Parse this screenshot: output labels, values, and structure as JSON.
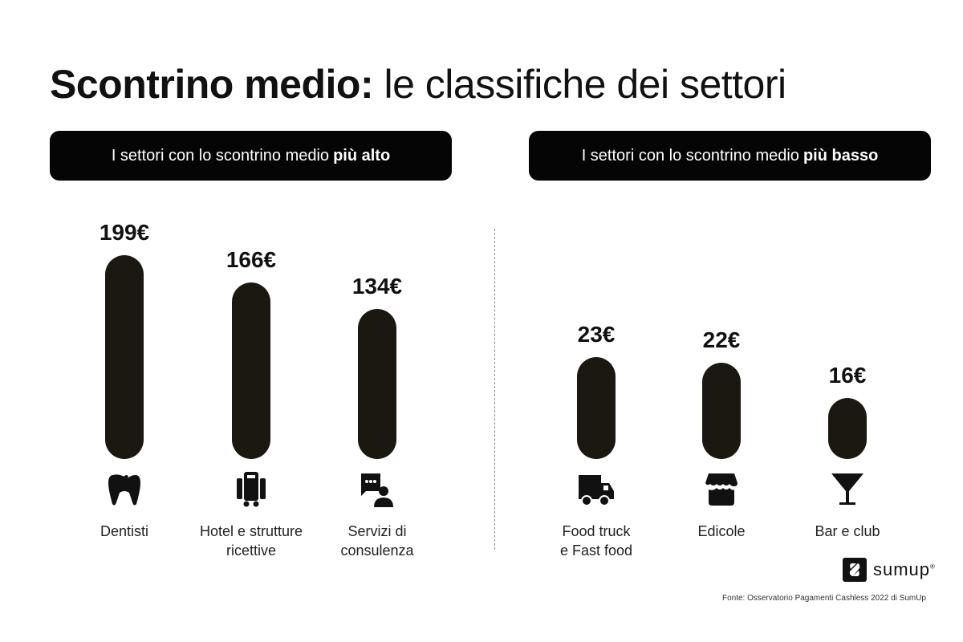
{
  "title": {
    "bold": "Scontrino medio:",
    "rest": " le classifiche dei settori"
  },
  "chart_data": [
    {
      "type": "bar",
      "header": {
        "text": "I settori con lo scontrino medio",
        "bold": "più alto"
      },
      "categories": [
        "Dentisti",
        "Hotel e strutture ricettive",
        "Servizi di consulenza"
      ],
      "values": [
        199,
        166,
        134
      ],
      "value_labels": [
        "199€",
        "166€",
        "134€"
      ],
      "unit": "€",
      "icons": [
        "tooth-icon",
        "luggage-icon",
        "consulting-chat-icon"
      ]
    },
    {
      "type": "bar",
      "header": {
        "text": "I settori con lo scontrino medio",
        "bold": "più basso"
      },
      "categories": [
        "Food truck e Fast food",
        "Edicole",
        "Bar e club"
      ],
      "label_lines": [
        [
          "Food truck",
          "e Fast food"
        ],
        [
          "Edicole"
        ],
        [
          "Bar e club"
        ]
      ],
      "values": [
        23,
        22,
        16
      ],
      "value_labels": [
        "23€",
        "22€",
        "16€"
      ],
      "unit": "€",
      "icons": [
        "truck-icon",
        "shop-icon",
        "cocktail-icon"
      ]
    }
  ],
  "left_label_lines": [
    [
      "Dentisti"
    ],
    [
      "Hotel e strutture",
      "ricettive"
    ],
    [
      "Servizi di",
      "consulenza"
    ]
  ],
  "colors": {
    "bar": "#1b1812",
    "header_bg": "#050505"
  },
  "logo": {
    "text": "sumup",
    "mark": "®"
  },
  "source": "Fonte: Osservatorio Pagamenti Cashless 2022 di SumUp"
}
